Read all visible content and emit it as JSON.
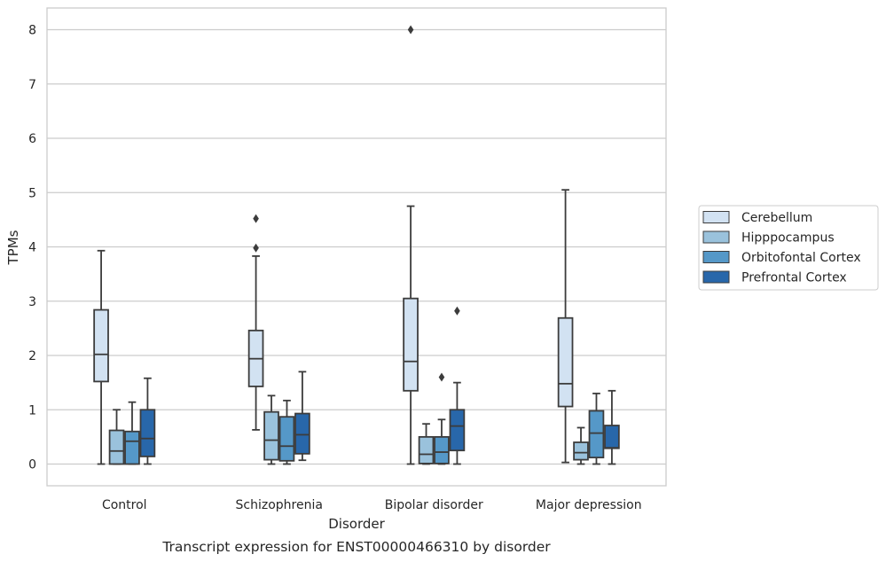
{
  "caption": "Transcript expression for ENST00000466310 by disorder",
  "chart_data": {
    "type": "boxplot",
    "xlabel": "Disorder",
    "ylabel": "TPMs",
    "ylim": [
      -0.4,
      8.4
    ],
    "yticks": [
      0,
      1,
      2,
      3,
      4,
      5,
      6,
      7,
      8
    ],
    "categories": [
      "Control",
      "Schizophrenia",
      "Bipolar disorder",
      "Major depression"
    ],
    "grid": "horizontal",
    "legend_position": "right",
    "series": [
      {
        "name": "Cerebellum",
        "color": "#d2e2f2",
        "boxes": [
          {
            "whislo": 0.0,
            "q1": 1.52,
            "med": 2.02,
            "q3": 2.84,
            "whishi": 3.93,
            "fliers": []
          },
          {
            "whislo": 0.63,
            "q1": 1.43,
            "med": 1.94,
            "q3": 2.46,
            "whishi": 3.83,
            "fliers": [
              3.98,
              4.52
            ]
          },
          {
            "whislo": 0.0,
            "q1": 1.35,
            "med": 1.89,
            "q3": 3.05,
            "whishi": 4.75,
            "fliers": [
              8.0
            ]
          },
          {
            "whislo": 0.03,
            "q1": 1.06,
            "med": 1.48,
            "q3": 2.69,
            "whishi": 5.05,
            "fliers": []
          }
        ]
      },
      {
        "name": "Hipppocampus",
        "color": "#9ac2dc",
        "boxes": [
          {
            "whislo": 0.0,
            "q1": 0.0,
            "med": 0.24,
            "q3": 0.62,
            "whishi": 1.0,
            "fliers": []
          },
          {
            "whislo": 0.0,
            "q1": 0.08,
            "med": 0.44,
            "q3": 0.96,
            "whishi": 1.26,
            "fliers": []
          },
          {
            "whislo": 0.0,
            "q1": 0.01,
            "med": 0.18,
            "q3": 0.5,
            "whishi": 0.74,
            "fliers": []
          },
          {
            "whislo": 0.0,
            "q1": 0.08,
            "med": 0.21,
            "q3": 0.4,
            "whishi": 0.67,
            "fliers": []
          }
        ]
      },
      {
        "name": "Orbitofontal Cortex",
        "color": "#5598c8",
        "boxes": [
          {
            "whislo": 0.0,
            "q1": 0.0,
            "med": 0.42,
            "q3": 0.6,
            "whishi": 1.14,
            "fliers": []
          },
          {
            "whislo": 0.0,
            "q1": 0.06,
            "med": 0.33,
            "q3": 0.87,
            "whishi": 1.17,
            "fliers": []
          },
          {
            "whislo": 0.0,
            "q1": 0.01,
            "med": 0.22,
            "q3": 0.5,
            "whishi": 0.82,
            "fliers": [
              1.6
            ]
          },
          {
            "whislo": 0.0,
            "q1": 0.12,
            "med": 0.57,
            "q3": 0.98,
            "whishi": 1.3,
            "fliers": []
          }
        ]
      },
      {
        "name": "Prefrontal Cortex",
        "color": "#2867aa",
        "boxes": [
          {
            "whislo": 0.0,
            "q1": 0.14,
            "med": 0.47,
            "q3": 1.0,
            "whishi": 1.58,
            "fliers": []
          },
          {
            "whislo": 0.07,
            "q1": 0.19,
            "med": 0.54,
            "q3": 0.93,
            "whishi": 1.7,
            "fliers": []
          },
          {
            "whislo": 0.0,
            "q1": 0.25,
            "med": 0.7,
            "q3": 1.0,
            "whishi": 1.5,
            "fliers": [
              2.82
            ]
          },
          {
            "whislo": 0.0,
            "q1": 0.29,
            "med": 0.3,
            "q3": 0.71,
            "whishi": 1.35,
            "fliers": []
          }
        ]
      }
    ]
  }
}
